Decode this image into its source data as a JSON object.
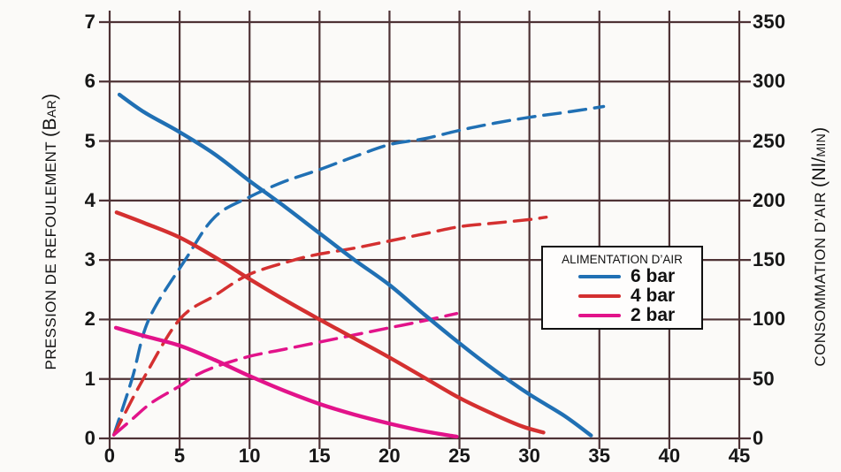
{
  "colors": {
    "grid": "#4e3235",
    "axis_text": "#171717",
    "background": "#fbfaf8",
    "blue": "#2070b4",
    "red": "#d43030",
    "magenta": "#e2138a",
    "legend_border": "#101010"
  },
  "chart_data": {
    "type": "line",
    "grid": "on",
    "x_axis": {
      "min": 0,
      "max": 45,
      "ticks": [
        0,
        5,
        10,
        15,
        20,
        25,
        30,
        35,
        40,
        45
      ]
    },
    "y_left": {
      "label_main": "PRESSION DE REFOULEMENT",
      "unit_big": "(B",
      "unit_small": "AR",
      "unit_close": ")",
      "min": 0,
      "max": 7,
      "ticks": [
        0,
        1,
        2,
        3,
        4,
        5,
        6,
        7
      ]
    },
    "y_right": {
      "label_main": "CONSOMMATION D’AIR",
      "unit_big": "(Nl/",
      "unit_small": "MIN",
      "unit_close": ")",
      "min": 0,
      "max": 350,
      "ticks": [
        0,
        50,
        100,
        150,
        200,
        250,
        300,
        350
      ]
    },
    "legend": {
      "title": "ALIMENTATION D’AIR",
      "entries": [
        {
          "label": "6 bar",
          "color": "#2070b4"
        },
        {
          "label": "4 bar",
          "color": "#d43030"
        },
        {
          "label": "2 bar",
          "color": "#e2138a"
        }
      ]
    },
    "series": [
      {
        "id": "pression-6bar",
        "legend": "6 bar",
        "axis": "left",
        "style": "solid",
        "color": "#2070b4",
        "points": [
          [
            0.7,
            5.78
          ],
          [
            2.5,
            5.48
          ],
          [
            5,
            5.15
          ],
          [
            7.5,
            4.78
          ],
          [
            10,
            4.33
          ],
          [
            12.5,
            3.9
          ],
          [
            15,
            3.45
          ],
          [
            17.5,
            3.0
          ],
          [
            20,
            2.58
          ],
          [
            22.5,
            2.08
          ],
          [
            25,
            1.6
          ],
          [
            27.5,
            1.15
          ],
          [
            30,
            0.74
          ],
          [
            32.5,
            0.38
          ],
          [
            34.4,
            0.05
          ]
        ]
      },
      {
        "id": "pression-4bar",
        "legend": "4 bar",
        "axis": "left",
        "style": "solid",
        "color": "#d43030",
        "points": [
          [
            0.5,
            3.8
          ],
          [
            2.5,
            3.62
          ],
          [
            5,
            3.38
          ],
          [
            7.5,
            3.05
          ],
          [
            10,
            2.68
          ],
          [
            12.5,
            2.33
          ],
          [
            15,
            2.0
          ],
          [
            17.5,
            1.68
          ],
          [
            20,
            1.36
          ],
          [
            22.5,
            1.02
          ],
          [
            25,
            0.68
          ],
          [
            27.5,
            0.4
          ],
          [
            29.5,
            0.2
          ],
          [
            31,
            0.1
          ]
        ]
      },
      {
        "id": "pression-2bar",
        "legend": "2 bar",
        "axis": "left",
        "style": "solid",
        "color": "#e2138a",
        "points": [
          [
            0.45,
            1.86
          ],
          [
            2.5,
            1.72
          ],
          [
            5,
            1.56
          ],
          [
            7.5,
            1.32
          ],
          [
            10,
            1.05
          ],
          [
            12.5,
            0.8
          ],
          [
            15,
            0.58
          ],
          [
            17.5,
            0.4
          ],
          [
            20,
            0.25
          ],
          [
            22.5,
            0.12
          ],
          [
            24.8,
            0.03
          ]
        ]
      },
      {
        "id": "conso-6bar",
        "legend": "6 bar",
        "axis": "right",
        "style": "dashed",
        "color": "#2070b4",
        "points": [
          [
            0.3,
            3
          ],
          [
            1.6,
            50
          ],
          [
            2.8,
            100
          ],
          [
            5.4,
            150
          ],
          [
            7.5,
            186
          ],
          [
            10,
            203
          ],
          [
            12.5,
            216
          ],
          [
            15,
            226
          ],
          [
            17.5,
            237
          ],
          [
            20,
            247
          ],
          [
            22.5,
            252
          ],
          [
            25,
            259
          ],
          [
            27.5,
            265
          ],
          [
            30,
            270
          ],
          [
            32.5,
            274
          ],
          [
            35.3,
            279
          ]
        ]
      },
      {
        "id": "conso-4bar",
        "legend": "4 bar",
        "axis": "right",
        "style": "dashed",
        "color": "#d43030",
        "points": [
          [
            0.3,
            3
          ],
          [
            2.4,
            50
          ],
          [
            5,
            100
          ],
          [
            7.5,
            120
          ],
          [
            10,
            138
          ],
          [
            13.2,
            150
          ],
          [
            15,
            155
          ],
          [
            17.5,
            160
          ],
          [
            20,
            166
          ],
          [
            22.5,
            172
          ],
          [
            25,
            178
          ],
          [
            27.5,
            181
          ],
          [
            30,
            184
          ],
          [
            31.2,
            186
          ]
        ]
      },
      {
        "id": "conso-2bar",
        "legend": "2 bar",
        "axis": "right",
        "style": "dashed",
        "color": "#e2138a",
        "points": [
          [
            0.3,
            3
          ],
          [
            1.5,
            15
          ],
          [
            3,
            30
          ],
          [
            5,
            44
          ],
          [
            6,
            52
          ],
          [
            7.5,
            60
          ],
          [
            10,
            69
          ],
          [
            12.5,
            75
          ],
          [
            15,
            81
          ],
          [
            17.5,
            87
          ],
          [
            20,
            93
          ],
          [
            22.5,
            99
          ],
          [
            24.8,
            105
          ]
        ]
      }
    ]
  }
}
